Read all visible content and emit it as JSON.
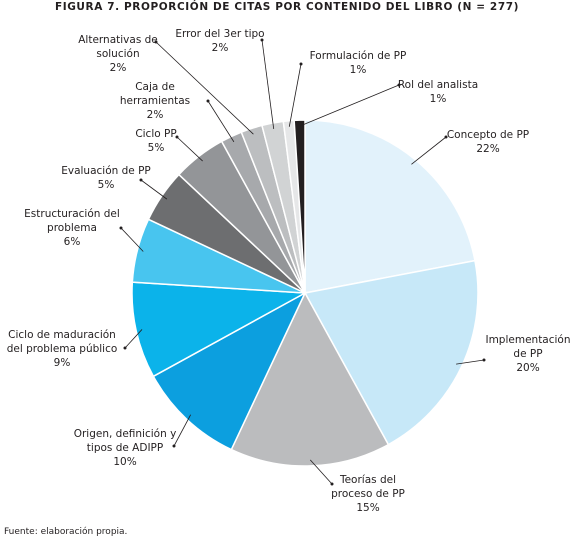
{
  "chart_data": {
    "type": "pie",
    "title": "FIGURA 7. PROPORCIÓN DE CITAS POR CONTENIDO DEL LIBRO (N = 277)",
    "source": "Fuente: elaboración propia.",
    "categories": [
      "Concepto de PP",
      "Implementación de PP",
      "Teorías del proceso de PP",
      "Origen, definición y tipos de ADIPP",
      "Ciclo de maduración del problema público",
      "Estructuración del problema",
      "Evaluación de PP",
      "Ciclo PP",
      "Caja de herramientas",
      "Alternativas de solución",
      "Error del 3er tipo",
      "Formulación de PP",
      "Rol del analista"
    ],
    "values": [
      22,
      20,
      15,
      10,
      9,
      6,
      5,
      5,
      2,
      2,
      2,
      1,
      1
    ],
    "value_labels": [
      "22%",
      "20%",
      "15%",
      "10%",
      "9%",
      "6%",
      "5%",
      "5%",
      "2%",
      "2%",
      "2%",
      "1%",
      "1%"
    ],
    "colors": [
      "#e2f2fb",
      "#c7e8f8",
      "#bbbcbe",
      "#0c9fdf",
      "#0bb3ea",
      "#48c5ef",
      "#6d6e70",
      "#939598",
      "#a7a9ac",
      "#bcbec0",
      "#d1d3d4",
      "#e6e7e8",
      "#231f20"
    ]
  }
}
